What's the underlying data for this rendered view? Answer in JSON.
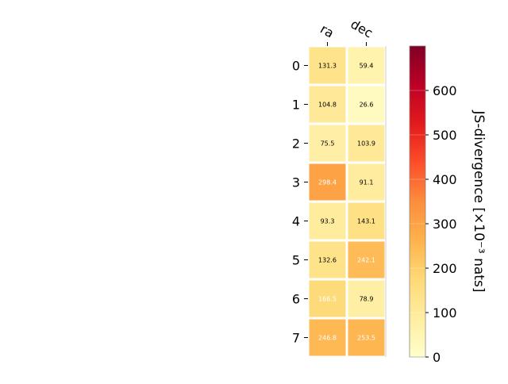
{
  "chart_data": {
    "type": "heatmap",
    "columns": [
      "ra",
      "dec"
    ],
    "rows": [
      "0",
      "1",
      "2",
      "3",
      "4",
      "5",
      "6",
      "7"
    ],
    "values": [
      [
        131.3,
        59.4
      ],
      [
        104.8,
        26.6
      ],
      [
        75.5,
        103.9
      ],
      [
        298.4,
        91.1
      ],
      [
        93.3,
        143.1
      ],
      [
        132.6,
        242.1
      ],
      [
        166.5,
        78.9
      ],
      [
        246.8,
        253.5
      ]
    ],
    "colorbar": {
      "label": "JS-divergence [×10⁻³ nats]",
      "range": [
        0,
        700
      ],
      "ticks": [
        0,
        100,
        200,
        300,
        400,
        500,
        600
      ],
      "colormap": "YlOrRd"
    },
    "label_color_threshold": 160
  }
}
